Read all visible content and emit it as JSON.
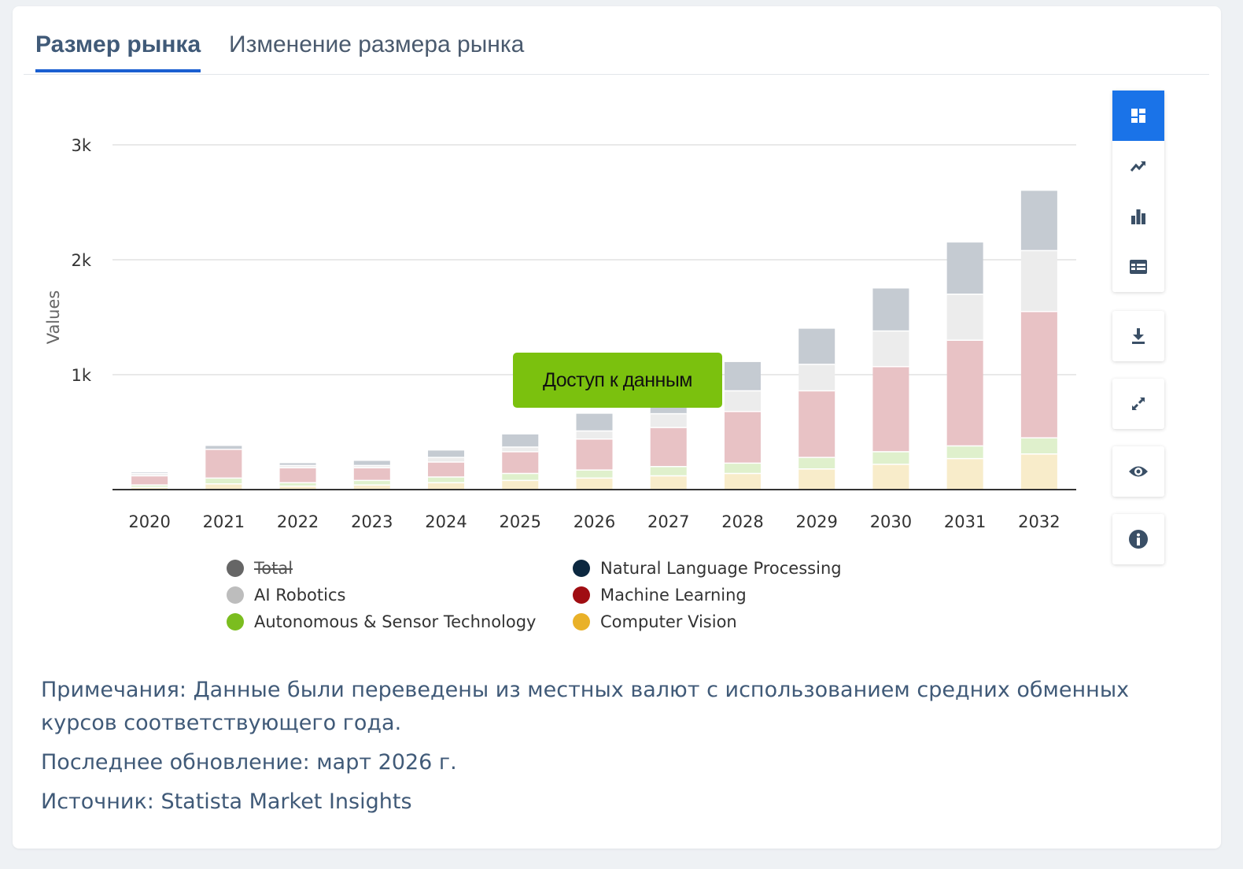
{
  "tabs": [
    {
      "label": "Размер рынка",
      "active": true
    },
    {
      "label": "Изменение размера рынка",
      "active": false
    }
  ],
  "cta_label": "Доступ к данным",
  "legend": [
    {
      "label": "Total",
      "color": "#666666",
      "disabled": true
    },
    {
      "label": "Natural Language Processing",
      "color": "#0c2840"
    },
    {
      "label": "AI Robotics",
      "color": "#bdbdbd"
    },
    {
      "label": "Machine Learning",
      "color": "#a00d12"
    },
    {
      "label": "Autonomous & Sensor Technology",
      "color": "#7bbd1f"
    },
    {
      "label": "Computer Vision",
      "color": "#e9b128"
    }
  ],
  "toolbar": [
    {
      "icon": "grid-icon",
      "active": true
    },
    {
      "icon": "trend-line-icon"
    },
    {
      "icon": "bar-chart-icon"
    },
    {
      "icon": "table-icon"
    },
    {
      "icon": "download-icon"
    },
    {
      "icon": "expand-icon"
    },
    {
      "icon": "eye-icon"
    },
    {
      "icon": "info-icon"
    }
  ],
  "notes": {
    "line1": "Примечания: Данные были переведены из местных валют с использованием средних обменных курсов соответствующего года.",
    "line2": "Последнее обновление: март 2026 г.",
    "source_prefix": "Источник: ",
    "source_name": "Statista Market Insights"
  },
  "chart_data": {
    "type": "bar",
    "stacked": true,
    "ylabel": "Values",
    "ylim": [
      0,
      3000
    ],
    "yticks": [
      {
        "value": 1000,
        "label": "1k"
      },
      {
        "value": 2000,
        "label": "2k"
      },
      {
        "value": 3000,
        "label": "3k"
      }
    ],
    "categories": [
      "2020",
      "2021",
      "2022",
      "2023",
      "2024",
      "2025",
      "2026",
      "2027",
      "2028",
      "2029",
      "2030",
      "2031",
      "2032"
    ],
    "series": [
      {
        "name": "Computer Vision",
        "color": "#f8ecca",
        "values": [
          20,
          50,
          30,
          40,
          60,
          80,
          100,
          120,
          140,
          180,
          220,
          270,
          310
        ]
      },
      {
        "name": "Autonomous & Sensor Technology",
        "color": "#dff0cc",
        "values": [
          20,
          50,
          30,
          40,
          50,
          60,
          70,
          80,
          90,
          100,
          110,
          110,
          140
        ]
      },
      {
        "name": "Machine Learning",
        "color": "#e8c2c5",
        "values": [
          80,
          250,
          130,
          110,
          130,
          190,
          270,
          340,
          450,
          580,
          740,
          920,
          1100
        ]
      },
      {
        "name": "Natural Language Processing",
        "color": "#e0e4e8",
        "values": [
          0,
          0,
          0,
          0,
          0,
          0,
          0,
          0,
          0,
          0,
          0,
          0,
          0
        ]
      },
      {
        "name": "AI Robotics",
        "color": "#ececec",
        "values": [
          20,
          0,
          20,
          20,
          40,
          40,
          70,
          120,
          180,
          230,
          310,
          400,
          530
        ]
      },
      {
        "name": "Total (remainder)",
        "color": "#c5cbd2",
        "values": [
          10,
          30,
          20,
          40,
          60,
          110,
          150,
          150,
          250,
          310,
          370,
          450,
          520
        ]
      }
    ]
  }
}
